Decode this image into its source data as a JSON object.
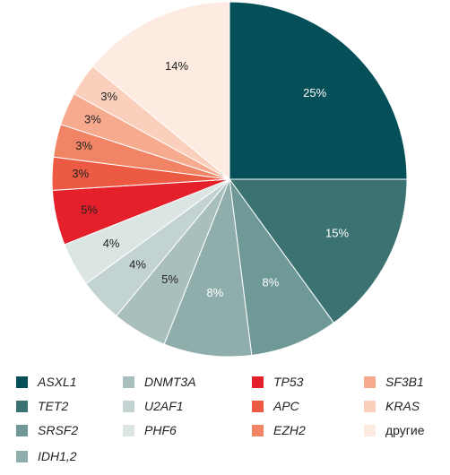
{
  "chart_data": {
    "type": "pie",
    "title": "",
    "start": "12 o'clock",
    "direction": "clockwise",
    "legend_position": "bottom",
    "slices": [
      {
        "name": "ASXL1",
        "value": 25,
        "label": "25%",
        "color": "#054f58",
        "label_color": "#ffffff"
      },
      {
        "name": "TET2",
        "value": 15,
        "label": "15%",
        "color": "#3d7272",
        "label_color": "#ffffff"
      },
      {
        "name": "SRSF2",
        "value": 8,
        "label": "8%",
        "color": "#6f9997",
        "label_color": "#ffffff"
      },
      {
        "name": "IDH1,2",
        "value": 8,
        "label": "8%",
        "color": "#8fadab",
        "label_color": "#ffffff"
      },
      {
        "name": "DNMT3A",
        "value": 5,
        "label": "5%",
        "color": "#a9bfbe",
        "label_color": "#222222"
      },
      {
        "name": "U2AF1",
        "value": 4,
        "label": "4%",
        "color": "#c3d3d2",
        "label_color": "#222222"
      },
      {
        "name": "PHF6",
        "value": 4,
        "label": "4%",
        "color": "#dbe5e4",
        "label_color": "#222222"
      },
      {
        "name": "TP53",
        "value": 5,
        "label": "5%",
        "color": "#e4202a",
        "label_color": "#222222"
      },
      {
        "name": "APC",
        "value": 3,
        "label": "3%",
        "color": "#ec5a43",
        "label_color": "#222222"
      },
      {
        "name": "EZH2",
        "value": 3,
        "label": "3%",
        "color": "#f28466",
        "label_color": "#222222"
      },
      {
        "name": "SF3B1",
        "value": 3,
        "label": "3%",
        "color": "#f6aa8e",
        "label_color": "#222222"
      },
      {
        "name": "KRAS",
        "value": 3,
        "label": "3%",
        "color": "#fad0bd",
        "label_color": "#222222"
      },
      {
        "name": "другие",
        "value": 14,
        "label": "14%",
        "color": "#fdeae1",
        "label_color": "#222222",
        "italic": false
      }
    ]
  }
}
